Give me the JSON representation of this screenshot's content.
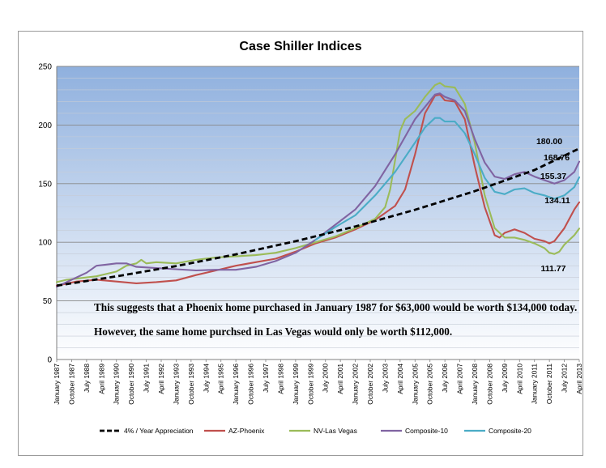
{
  "chart_data": {
    "type": "line",
    "title": "Case Shiller Indices",
    "ylim": [
      0,
      250
    ],
    "y_ticks": [
      0,
      50,
      100,
      150,
      200,
      250
    ],
    "x_range": [
      1987.0,
      2013.25
    ],
    "x_tick_labels": [
      "January 1987",
      "October 1987",
      "July 1988",
      "April 1989",
      "January 1990",
      "October 1990",
      "July 1991",
      "April 1992",
      "January 1993",
      "October 1993",
      "July 1994",
      "April 1995",
      "January 1996",
      "October 1996",
      "July 1997",
      "April 1998",
      "January 1999",
      "October 1999",
      "July 2000",
      "April 2001",
      "January 2002",
      "October 2002",
      "July 2003",
      "April 2004",
      "January 2005",
      "October 2005",
      "July 2006",
      "April 2007",
      "January 2008",
      "October 2008",
      "July 2009",
      "April 2010",
      "January 2011",
      "October 2011",
      "July 2012",
      "April 2013"
    ],
    "x_tick_values": [
      1987.0,
      1987.75,
      1988.5,
      1989.25,
      1990.0,
      1990.75,
      1991.5,
      1992.25,
      1993.0,
      1993.75,
      1994.5,
      1995.25,
      1996.0,
      1996.75,
      1997.5,
      1998.25,
      1999.0,
      1999.75,
      2000.5,
      2001.25,
      2002.0,
      2002.75,
      2003.5,
      2004.25,
      2005.0,
      2005.75,
      2006.5,
      2007.25,
      2008.0,
      2008.75,
      2009.5,
      2010.25,
      2011.0,
      2011.75,
      2012.5,
      2013.25
    ],
    "grid": true,
    "legend_position": "bottom",
    "series": [
      {
        "name": "4% / Year  Appreciation",
        "color": "#000000",
        "dashed": true,
        "points": [
          [
            1987.0,
            63
          ],
          [
            1990.0,
            70.9
          ],
          [
            1993.0,
            79.7
          ],
          [
            1996.0,
            89.7
          ],
          [
            1999.0,
            100.9
          ],
          [
            2002.0,
            113.5
          ],
          [
            2005.0,
            127.7
          ],
          [
            2008.0,
            143.6
          ],
          [
            2011.0,
            161.6
          ],
          [
            2013.25,
            180.0
          ]
        ]
      },
      {
        "name": "AZ-Phoenix",
        "color": "#c0504d",
        "points": [
          [
            1987.0,
            63
          ],
          [
            1988.0,
            66.5
          ],
          [
            1989.0,
            68
          ],
          [
            1990.0,
            66.5
          ],
          [
            1991.0,
            65
          ],
          [
            1992.0,
            66
          ],
          [
            1993.0,
            67.5
          ],
          [
            1994.0,
            72
          ],
          [
            1995.0,
            76
          ],
          [
            1996.0,
            80
          ],
          [
            1997.0,
            83
          ],
          [
            1998.0,
            86
          ],
          [
            1999.0,
            92
          ],
          [
            2000.0,
            99
          ],
          [
            2001.0,
            104
          ],
          [
            2002.0,
            111
          ],
          [
            2003.0,
            119
          ],
          [
            2004.0,
            131
          ],
          [
            2004.5,
            145
          ],
          [
            2005.0,
            175
          ],
          [
            2005.5,
            210
          ],
          [
            2006.0,
            225
          ],
          [
            2006.25,
            226
          ],
          [
            2006.5,
            221
          ],
          [
            2007.0,
            220
          ],
          [
            2007.5,
            205
          ],
          [
            2008.0,
            165
          ],
          [
            2008.5,
            130
          ],
          [
            2009.0,
            106
          ],
          [
            2009.25,
            104
          ],
          [
            2009.5,
            108
          ],
          [
            2010.0,
            111
          ],
          [
            2010.5,
            108
          ],
          [
            2011.0,
            103
          ],
          [
            2011.5,
            101
          ],
          [
            2011.75,
            99
          ],
          [
            2012.0,
            101
          ],
          [
            2012.5,
            112
          ],
          [
            2013.0,
            128
          ],
          [
            2013.25,
            134.11
          ]
        ]
      },
      {
        "name": "NV-Las Vegas",
        "color": "#9bbb59",
        "points": [
          [
            1987.0,
            66
          ],
          [
            1987.5,
            68
          ],
          [
            1988.0,
            69
          ],
          [
            1989.0,
            71
          ],
          [
            1990.0,
            75
          ],
          [
            1990.5,
            80
          ],
          [
            1991.0,
            82
          ],
          [
            1991.25,
            85
          ],
          [
            1991.5,
            82
          ],
          [
            1992.0,
            83
          ],
          [
            1993.0,
            82
          ],
          [
            1994.0,
            85
          ],
          [
            1995.0,
            87
          ],
          [
            1996.0,
            88
          ],
          [
            1997.0,
            89
          ],
          [
            1998.0,
            91
          ],
          [
            1999.0,
            95
          ],
          [
            2000.0,
            100
          ],
          [
            2001.0,
            105
          ],
          [
            2002.0,
            112
          ],
          [
            2003.0,
            120
          ],
          [
            2003.5,
            130
          ],
          [
            2003.75,
            145
          ],
          [
            2004.0,
            170
          ],
          [
            2004.25,
            195
          ],
          [
            2004.5,
            205
          ],
          [
            2005.0,
            212
          ],
          [
            2005.5,
            224
          ],
          [
            2006.0,
            234
          ],
          [
            2006.25,
            236
          ],
          [
            2006.5,
            233
          ],
          [
            2007.0,
            232
          ],
          [
            2007.5,
            218
          ],
          [
            2008.0,
            185
          ],
          [
            2008.5,
            140
          ],
          [
            2009.0,
            112
          ],
          [
            2009.5,
            104
          ],
          [
            2010.0,
            104
          ],
          [
            2010.5,
            102
          ],
          [
            2011.0,
            99
          ],
          [
            2011.5,
            95
          ],
          [
            2011.75,
            91
          ],
          [
            2012.0,
            90
          ],
          [
            2012.25,
            92
          ],
          [
            2012.5,
            98
          ],
          [
            2013.0,
            106
          ],
          [
            2013.25,
            111.77
          ]
        ]
      },
      {
        "name": "Composite-10",
        "color": "#8064a2",
        "points": [
          [
            1987.0,
            62
          ],
          [
            1988.0,
            70
          ],
          [
            1988.5,
            74
          ],
          [
            1989.0,
            80
          ],
          [
            1990.0,
            82
          ],
          [
            1990.5,
            82
          ],
          [
            1991.0,
            79
          ],
          [
            1992.0,
            78
          ],
          [
            1993.0,
            77
          ],
          [
            1994.0,
            76
          ],
          [
            1995.0,
            76.5
          ],
          [
            1996.0,
            76.5
          ],
          [
            1997.0,
            79
          ],
          [
            1998.0,
            84
          ],
          [
            1999.0,
            91
          ],
          [
            2000.0,
            102
          ],
          [
            2001.0,
            115
          ],
          [
            2002.0,
            128
          ],
          [
            2003.0,
            148
          ],
          [
            2004.0,
            175
          ],
          [
            2005.0,
            205
          ],
          [
            2006.0,
            226
          ],
          [
            2006.25,
            227
          ],
          [
            2006.5,
            224
          ],
          [
            2007.0,
            221
          ],
          [
            2007.5,
            212
          ],
          [
            2008.0,
            188
          ],
          [
            2008.5,
            168
          ],
          [
            2009.0,
            156
          ],
          [
            2009.5,
            154
          ],
          [
            2010.0,
            158
          ],
          [
            2010.5,
            160
          ],
          [
            2011.0,
            156
          ],
          [
            2011.5,
            153
          ],
          [
            2012.0,
            150
          ],
          [
            2012.5,
            153
          ],
          [
            2013.0,
            160
          ],
          [
            2013.25,
            168.76
          ]
        ]
      },
      {
        "name": "Composite-20",
        "color": "#4bacc6",
        "points": [
          [
            2000.0,
            102
          ],
          [
            2001.0,
            113
          ],
          [
            2002.0,
            123
          ],
          [
            2003.0,
            140
          ],
          [
            2004.0,
            160
          ],
          [
            2005.0,
            185
          ],
          [
            2005.5,
            198
          ],
          [
            2006.0,
            206
          ],
          [
            2006.25,
            206
          ],
          [
            2006.5,
            203
          ],
          [
            2007.0,
            203
          ],
          [
            2007.5,
            193
          ],
          [
            2008.0,
            175
          ],
          [
            2008.5,
            155
          ],
          [
            2009.0,
            143
          ],
          [
            2009.5,
            141
          ],
          [
            2010.0,
            145
          ],
          [
            2010.5,
            146
          ],
          [
            2011.0,
            142
          ],
          [
            2011.5,
            140
          ],
          [
            2012.0,
            137
          ],
          [
            2012.5,
            140
          ],
          [
            2013.0,
            147
          ],
          [
            2013.25,
            155.37
          ]
        ]
      }
    ],
    "end_labels": [
      "180.00",
      "168.76",
      "155.37",
      "134.11",
      "111.77"
    ],
    "annotations": [
      "This suggests that a Phoenix home purchased in January 1987 for $63,000  would be worth $134,000 today.",
      "However, the same home purchsed in Las Vegas would only be worth $112,000."
    ]
  }
}
